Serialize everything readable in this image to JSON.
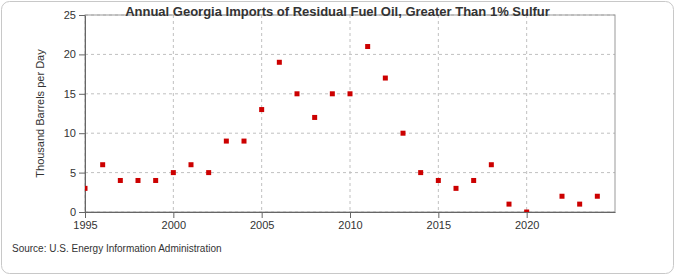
{
  "chart_data": {
    "type": "scatter",
    "title": "Annual Georgia Imports of Residual Fuel Oil, Greater Than 1% Sulfur",
    "y_label": "Thousand Barrels per Day",
    "source": "Source: U.S. Energy Information Administration",
    "x": [
      1995,
      1996,
      1997,
      1998,
      1999,
      2000,
      2001,
      2002,
      2003,
      2004,
      2005,
      2006,
      2007,
      2008,
      2009,
      2010,
      2011,
      2012,
      2013,
      2014,
      2015,
      2016,
      2017,
      2018,
      2019,
      2020,
      2022,
      2023,
      2024
    ],
    "values": [
      3,
      6,
      4,
      4,
      4,
      5,
      6,
      5,
      9,
      9,
      13,
      19,
      15,
      12,
      15,
      15,
      21,
      17,
      10,
      5,
      4,
      3,
      4,
      6,
      1,
      0,
      2,
      1,
      2
    ],
    "color": "#cc0000",
    "marker": "square",
    "xlim": [
      1995,
      2025
    ],
    "xticks": [
      1995,
      2000,
      2005,
      2010,
      2015,
      2020
    ],
    "ylim": [
      0,
      25
    ],
    "yticks": [
      0,
      5,
      10,
      15,
      20,
      25
    ],
    "grid": true
  }
}
